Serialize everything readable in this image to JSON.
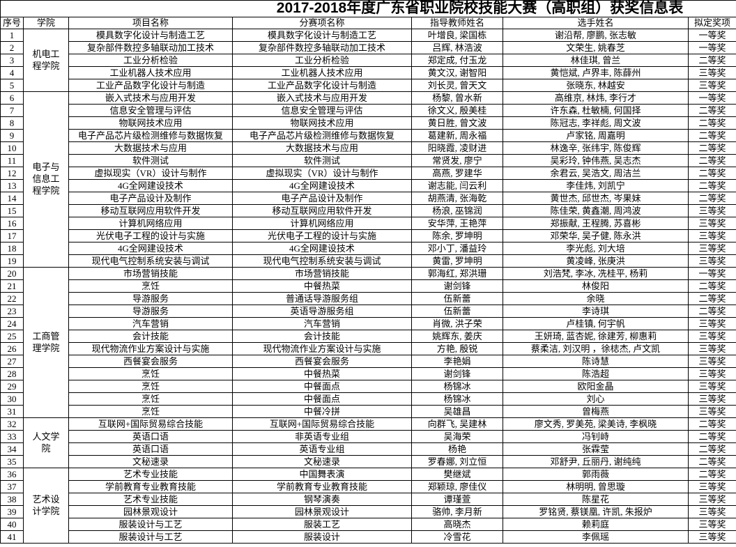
{
  "title": "2017-2018年度广东省职业院校技能大赛（高职组）获奖信息表",
  "headers": {
    "seq": "序号",
    "college": "学院",
    "project": "项目名称",
    "event": "分赛项名称",
    "teachers": "指导教师姓名",
    "students": "选手姓名",
    "award": "拟定奖项"
  },
  "college_groups": [
    {
      "name": "机电工程学院",
      "start": 1,
      "span": 5
    },
    {
      "name": "电子与信息工程学院",
      "start": 6,
      "span": 14
    },
    {
      "name": "工商管理学院",
      "start": 20,
      "span": 12
    },
    {
      "name": "人文学院",
      "start": 32,
      "span": 4
    },
    {
      "name": "艺术设计学院",
      "start": 36,
      "span": 6
    }
  ],
  "rows": [
    {
      "seq": "1",
      "project": "模具数字化设计与制造工艺",
      "event": "模具数字化设计与制造工艺",
      "teachers": "叶增良, 梁国栋",
      "students": "谢沿帮, 廖鹏, 张志敏",
      "award": "一等奖"
    },
    {
      "seq": "2",
      "project": "复杂部件数控多轴联动加工技术",
      "event": "复杂部件数控多轴联动加工技术",
      "teachers": "吕辉, 林浩波",
      "students": "文荣生, 姚春芝",
      "award": "一等奖"
    },
    {
      "seq": "3",
      "project": "工业分析检验",
      "event": "工业分析检验",
      "teachers": "郑定成, 付玉龙",
      "students": "林佳琪, 曾兰",
      "award": "二等奖"
    },
    {
      "seq": "4",
      "project": "工业机器人技术应用",
      "event": "工业机器人技术应用",
      "teachers": "黄文汉, 谢智阳",
      "students": "黄恺斌, 卢界丰, 陈薛州",
      "award": "三等奖"
    },
    {
      "seq": "5",
      "project": "工业产品数字化设计与制造",
      "event": "工业产品数字化设计与制造",
      "teachers": "刘长灵, 曾天文",
      "students": "张晓东, 林越安",
      "award": "三等奖"
    },
    {
      "seq": "6",
      "project": "嵌入式技术与应用开发",
      "event": "嵌入式技术与应用开发",
      "teachers": "杨黎, 曾水新",
      "students": "高维京, 林炜, 李行才",
      "award": "一等奖"
    },
    {
      "seq": "7",
      "project": "信息安全管理与评估",
      "event": "信息安全管理与评估",
      "teachers": "徐文义, 殷美桂",
      "students": "许东森, 杜敏楠, 何国择",
      "award": "二等奖"
    },
    {
      "seq": "8",
      "project": "物联网技术应用",
      "event": "物联网技术应用",
      "teachers": "黄日胜, 曾文波",
      "students": "陈冠志, 李祥彪, 周文波",
      "award": "二等奖"
    },
    {
      "seq": "9",
      "project": "电子产品芯片级检测维修与数据恢复",
      "event": "电子产品芯片级检测维修与数据恢复",
      "teachers": "葛建新, 周永福",
      "students": "卢家铭, 周嘉明",
      "award": "二等奖"
    },
    {
      "seq": "10",
      "project": "大数据技术与应用",
      "event": "大数据技术与应用",
      "teachers": "阳晓霞, 凌财进",
      "students": "林逸辛, 张纬宇, 陈俊辉",
      "award": "二等奖"
    },
    {
      "seq": "11",
      "project": "软件测试",
      "event": "软件测试",
      "teachers": "常贤发, 廖宁",
      "students": "吴彩玲, 钟伟燕, 吴志杰",
      "award": "二等奖"
    },
    {
      "seq": "12",
      "project": "虚拟现实（VR）设计与制作",
      "event": "虚拟现实（VR）设计与制作",
      "teachers": "高燕, 罗建华",
      "students": "余君云, 吴浩文, 周洁兰",
      "award": "二等奖"
    },
    {
      "seq": "13",
      "project": "4G全网建设技术",
      "event": "4G全网建设技术",
      "teachers": "谢志能, 闫云利",
      "students": "李佳炜, 刘凯宁",
      "award": "二等奖"
    },
    {
      "seq": "14",
      "project": "电子产品设计及制作",
      "event": "电子产品设计及制作",
      "teachers": "胡燕清, 张海乾",
      "students": "黄世杰, 邱世杰, 岑果妹",
      "award": "二等奖"
    },
    {
      "seq": "15",
      "project": "移动互联网应用软件开发",
      "event": "移动互联网应用软件开发",
      "teachers": "杨浪, 巫锦润",
      "students": "陈佳荣, 黄鑫潮, 周鸿波",
      "award": "三等奖"
    },
    {
      "seq": "16",
      "project": "计算机网络应用",
      "event": "计算机网络应用",
      "teachers": "安华萍, 王艳萍",
      "students": "郑振献, 王程腾, 苏喜彬",
      "award": "三等奖"
    },
    {
      "seq": "17",
      "project": "光伏电子工程的设计与实施",
      "event": "光伏电子工程的设计与实施",
      "teachers": "陈余, 罗坤明",
      "students": "邓荣华, 吴子健, 陈永洪",
      "award": "三等奖"
    },
    {
      "seq": "18",
      "project": "4G全网建设技术",
      "event": "4G全网建设技术",
      "teachers": "邓小丁, 潘益玲",
      "students": "李光彪, 刘大培",
      "award": "三等奖"
    },
    {
      "seq": "19",
      "project": "现代电气控制系统安装与调试",
      "event": "现代电气控制系统安装与调试",
      "teachers": "黄雷, 罗坤明",
      "students": "黄凌峰, 张庚洪",
      "award": "三等奖"
    },
    {
      "seq": "20",
      "project": "市场营销技能",
      "event": "市场营销技能",
      "teachers": "郭海红, 郑洪珊",
      "students": "刘浩梵, 李冰, 冼桂平, 杨莉",
      "award": "一等奖"
    },
    {
      "seq": "21",
      "project": "烹饪",
      "event": "中餐热菜",
      "teachers": "谢剑锋",
      "students": "林俊阳",
      "award": "二等奖"
    },
    {
      "seq": "22",
      "project": "导游服务",
      "event": "普通话导游服务组",
      "teachers": "伍新蕾",
      "students": "余晓",
      "award": "二等奖"
    },
    {
      "seq": "23",
      "project": "导游服务",
      "event": "英语导游服务组",
      "teachers": "伍新蕾",
      "students": "李诗琪",
      "award": "二等奖"
    },
    {
      "seq": "24",
      "project": "汽车营销",
      "event": "汽车营销",
      "teachers": "肖微, 洪子荣",
      "students": "卢桂镇, 何宇帆",
      "award": "三等奖"
    },
    {
      "seq": "25",
      "project": "会计技能",
      "event": "会计技能",
      "teachers": "姚辉东, 姜庆",
      "students": "王妍琦, 蓝杏妮, 徐建芳, 柳惠莉",
      "award": "三等奖"
    },
    {
      "seq": "26",
      "project": "现代物流作业方案设计与实施",
      "event": "现代物流作业方案设计与实施",
      "teachers": "方艳, 殷锐",
      "students": "蔡柔洁, 刘汉明 ，徐梽杰, 卢文凯",
      "award": "三等奖"
    },
    {
      "seq": "27",
      "project": "西餐宴会服务",
      "event": "西餐宴会服务",
      "teachers": "李艳娟",
      "students": "陈诗慧",
      "award": "三等奖"
    },
    {
      "seq": "28",
      "project": "烹饪",
      "event": "中餐热菜",
      "teachers": "谢剑锋",
      "students": "陈浩超",
      "award": "三等奖"
    },
    {
      "seq": "29",
      "project": "烹饪",
      "event": "中餐面点",
      "teachers": "杨锦冰",
      "students": "欧阳金晶",
      "award": "三等奖"
    },
    {
      "seq": "30",
      "project": "烹饪",
      "event": "中餐面点",
      "teachers": "杨锦冰",
      "students": "刘心",
      "award": "三等奖"
    },
    {
      "seq": "31",
      "project": "烹饪",
      "event": "中餐冷拼",
      "teachers": "吴雄昌",
      "students": "曾梅燕",
      "award": "三等奖"
    },
    {
      "seq": "32",
      "project": "互联网+国际贸易综合技能",
      "event": "互联网+国际贸易综合技能",
      "teachers": "向群飞, 吴建林",
      "students": "廖文秀, 罗美苑, 梁美诗, 李枫晓",
      "award": "二等奖"
    },
    {
      "seq": "33",
      "project": "英语口语",
      "event": "非英语专业组",
      "teachers": "吴海荣",
      "students": "冯钊峙",
      "award": "二等奖"
    },
    {
      "seq": "34",
      "project": "英语口语",
      "event": "英语专业组",
      "teachers": "杨艳",
      "students": "张霖莹",
      "award": "二等奖"
    },
    {
      "seq": "35",
      "project": "文秘速录",
      "event": "文秘速录",
      "teachers": "罗春娜, 刘立恒",
      "students": "邓舒尹, 丘丽丹, 谢纯纯",
      "award": "二等奖"
    },
    {
      "seq": "36",
      "project": "艺术专业技能",
      "event": "中国舞表演",
      "teachers": "樊继斌",
      "students": "郭雨薇",
      "award": "二等奖"
    },
    {
      "seq": "37",
      "project": "学前教育专业教育技能",
      "event": "学前教育专业教育技能",
      "teachers": "郑颖琼, 廖佳仪",
      "students": "林明明, 曾思璇",
      "award": "三等奖"
    },
    {
      "seq": "38",
      "project": "艺术专业技能",
      "event": "钢琴演奏",
      "teachers": "谭瑾萱",
      "students": "陈星花",
      "award": "三等奖"
    },
    {
      "seq": "39",
      "project": "园林景观设计",
      "event": "园林景观设计",
      "teachers": "骆帅, 李月新",
      "students": "罗铭贤, 蔡镁凰, 许凯, 朱报炉",
      "award": "三等奖"
    },
    {
      "seq": "40",
      "project": "服装设计与工艺",
      "event": "服装工艺",
      "teachers": "高晓杰",
      "students": "赖莉庭",
      "award": "三等奖"
    },
    {
      "seq": "41",
      "project": "服装设计与工艺",
      "event": "服装设计",
      "teachers": "冷雪花",
      "students": "李佩瑶",
      "award": "三等奖"
    }
  ]
}
